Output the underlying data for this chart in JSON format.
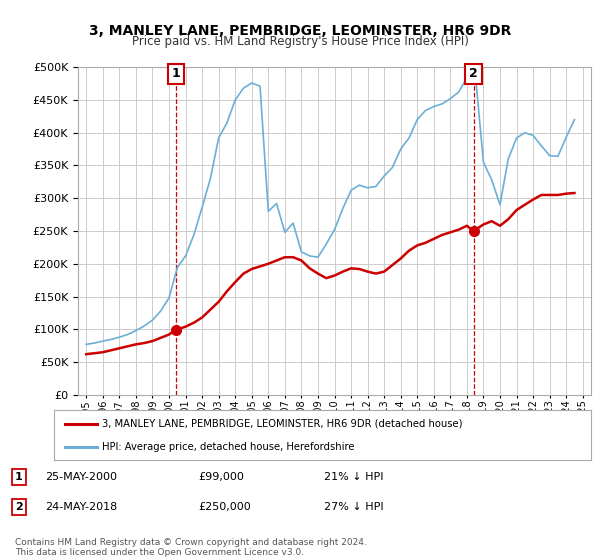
{
  "title": "3, MANLEY LANE, PEMBRIDGE, LEOMINSTER, HR6 9DR",
  "subtitle": "Price paid vs. HM Land Registry's House Price Index (HPI)",
  "legend_line1": "3, MANLEY LANE, PEMBRIDGE, LEOMINSTER, HR6 9DR (detached house)",
  "legend_line2": "HPI: Average price, detached house, Herefordshire",
  "footnote": "Contains HM Land Registry data © Crown copyright and database right 2024.\nThis data is licensed under the Open Government Licence v3.0.",
  "sale1_label": "1",
  "sale1_date": "25-MAY-2000",
  "sale1_price": "£99,000",
  "sale1_hpi": "21% ↓ HPI",
  "sale2_label": "2",
  "sale2_date": "24-MAY-2018",
  "sale2_price": "£250,000",
  "sale2_hpi": "27% ↓ HPI",
  "sale1_year": 2000.4,
  "sale1_value": 99000,
  "sale2_year": 2018.4,
  "sale2_value": 250000,
  "hpi_color": "#6baed6",
  "price_color": "#cc0000",
  "marker_color": "#cc0000",
  "ylim": [
    0,
    500000
  ],
  "yticks": [
    0,
    50000,
    100000,
    150000,
    200000,
    250000,
    300000,
    350000,
    400000,
    450000,
    500000
  ],
  "xmin": 1994.5,
  "xmax": 2025.5,
  "background_color": "#ffffff",
  "grid_color": "#cccccc",
  "hpi_data_x": [
    1995.0,
    1995.5,
    1996.0,
    1996.5,
    1997.0,
    1997.5,
    1998.0,
    1998.5,
    1999.0,
    1999.5,
    2000.0,
    2000.5,
    2001.0,
    2001.5,
    2002.0,
    2002.5,
    2003.0,
    2003.5,
    2004.0,
    2004.5,
    2005.0,
    2005.5,
    2006.0,
    2006.5,
    2007.0,
    2007.5,
    2008.0,
    2008.5,
    2009.0,
    2009.5,
    2010.0,
    2010.5,
    2011.0,
    2011.5,
    2012.0,
    2012.5,
    2013.0,
    2013.5,
    2014.0,
    2014.5,
    2015.0,
    2015.5,
    2016.0,
    2016.5,
    2017.0,
    2017.5,
    2018.0,
    2018.5,
    2019.0,
    2019.5,
    2020.0,
    2020.5,
    2021.0,
    2021.5,
    2022.0,
    2022.5,
    2023.0,
    2023.5,
    2024.0,
    2024.5
  ],
  "hpi_data_y": [
    77000,
    79000,
    82000,
    84500,
    88000,
    92000,
    98000,
    105000,
    114000,
    128000,
    148000,
    194000,
    212000,
    244000,
    286000,
    330000,
    392000,
    415000,
    450000,
    468000,
    476000,
    471000,
    280000,
    292000,
    248000,
    262000,
    218000,
    212000,
    210000,
    230000,
    252000,
    284000,
    312000,
    320000,
    316000,
    318000,
    334000,
    347000,
    375000,
    392000,
    420000,
    434000,
    440000,
    444000,
    452000,
    462000,
    484000,
    492000,
    355000,
    328000,
    290000,
    360000,
    392000,
    400000,
    396000,
    380000,
    365000,
    364000,
    393000,
    420000
  ],
  "price_data_x": [
    1995.0,
    1995.5,
    1996.0,
    1996.5,
    1997.0,
    1997.5,
    1998.0,
    1998.5,
    1999.0,
    1999.5,
    2000.0,
    2000.4,
    2001.0,
    2001.5,
    2002.0,
    2002.5,
    2003.0,
    2003.5,
    2004.0,
    2004.5,
    2005.0,
    2005.5,
    2006.0,
    2006.5,
    2007.0,
    2007.5,
    2008.0,
    2008.5,
    2009.0,
    2009.5,
    2010.0,
    2010.5,
    2011.0,
    2011.5,
    2012.0,
    2012.5,
    2013.0,
    2013.5,
    2014.0,
    2014.5,
    2015.0,
    2015.5,
    2016.0,
    2016.5,
    2017.0,
    2017.5,
    2018.0,
    2018.4,
    2019.0,
    2019.5,
    2020.0,
    2020.5,
    2021.0,
    2021.5,
    2022.0,
    2022.5,
    2023.0,
    2023.5,
    2024.0,
    2024.5
  ],
  "price_data_y": [
    62000,
    63500,
    65000,
    68000,
    71000,
    74000,
    77000,
    79000,
    82000,
    87000,
    92000,
    99000,
    104000,
    110000,
    118000,
    130000,
    142000,
    158000,
    172000,
    185000,
    192000,
    196000,
    200000,
    205000,
    210000,
    210000,
    205000,
    193000,
    185000,
    178000,
    182000,
    188000,
    193000,
    192000,
    188000,
    185000,
    188000,
    198000,
    208000,
    220000,
    228000,
    232000,
    238000,
    244000,
    248000,
    252000,
    258000,
    250000,
    260000,
    265000,
    258000,
    268000,
    282000,
    290000,
    298000,
    305000,
    305000,
    305000,
    307000,
    308000
  ]
}
